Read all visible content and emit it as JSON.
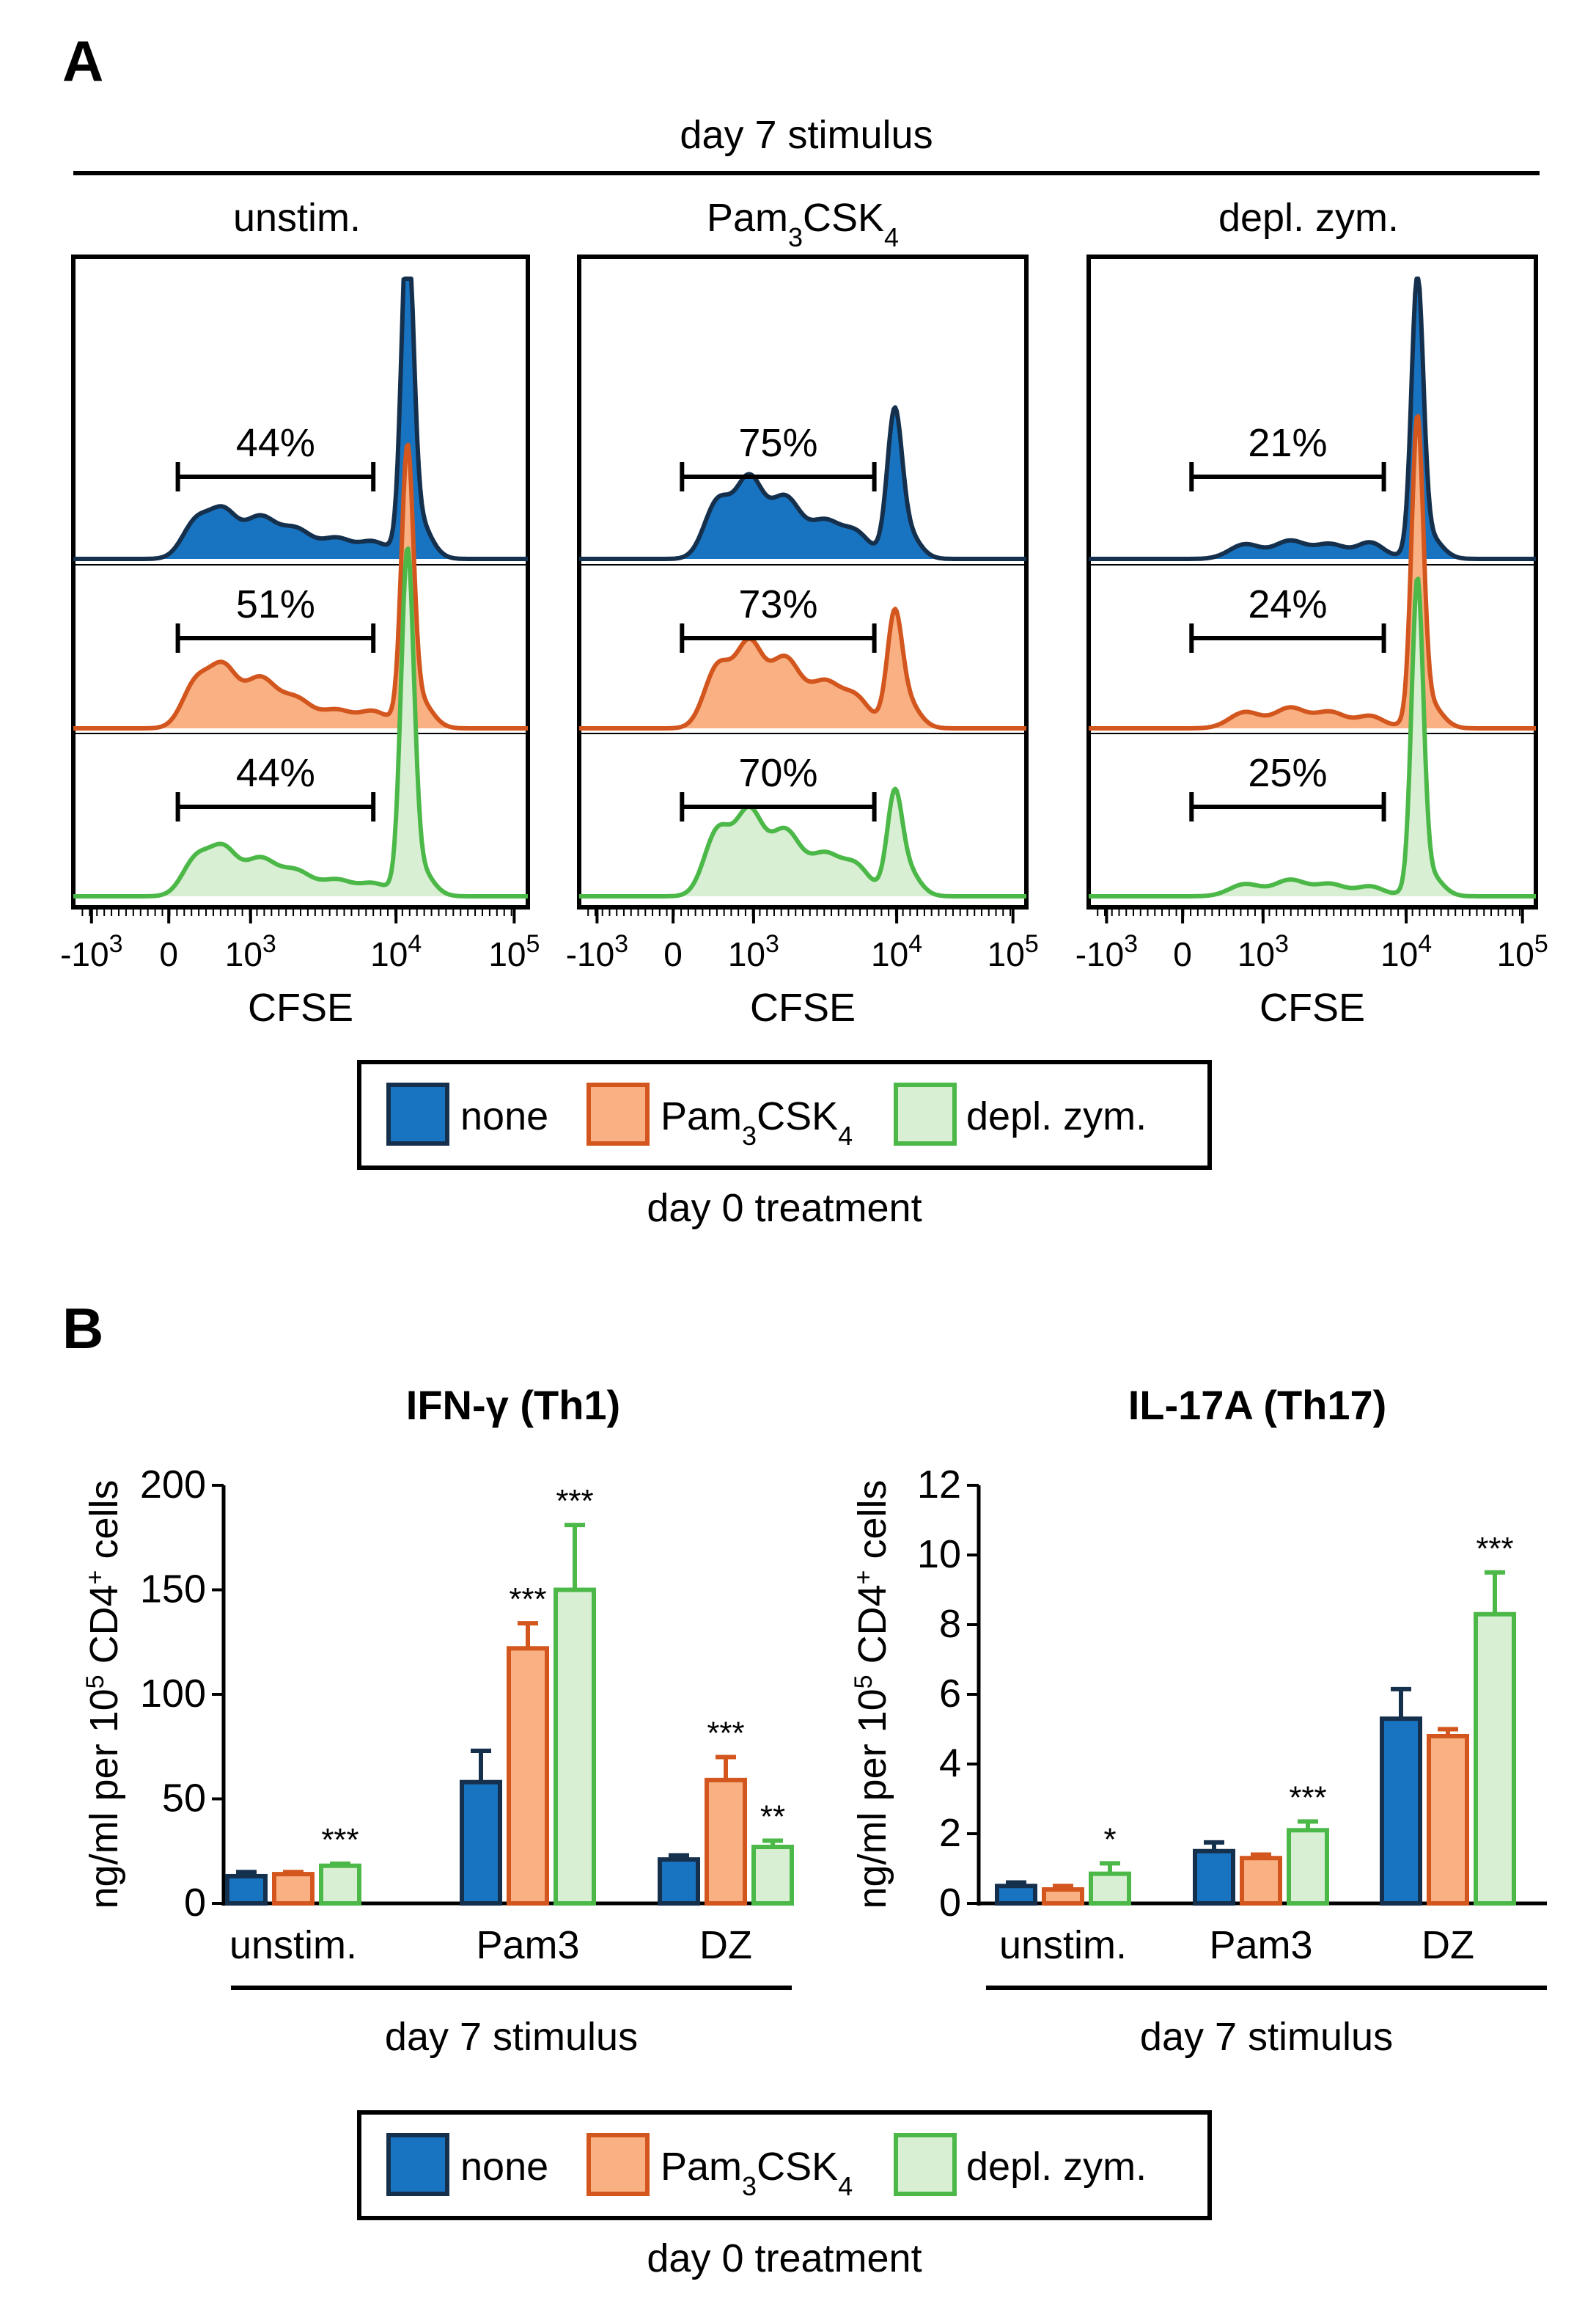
{
  "panel_a_letter": "A",
  "panel_b_letter": "B",
  "colors": {
    "none_fill": "#1874c1",
    "none_stroke": "#15304d",
    "pam_fill": "#f9b083",
    "pam_stroke": "#d2561d",
    "dz_fill": "#d9efd3",
    "dz_stroke": "#4bb848"
  },
  "panel_a": {
    "top_label": "day 7 stimulus",
    "axis_label": "CFSE",
    "x_ticks": {
      "neg": "-10",
      "neg_exp": "3",
      "zero": "0",
      "t3": "10",
      "t3_exp": "3",
      "t4": "10",
      "t4_exp": "4",
      "t5": "10",
      "t5_exp": "5"
    },
    "panels": [
      {
        "title": "unstim.",
        "percents": [
          "44%",
          "51%",
          "44%"
        ]
      },
      {
        "title_main": "Pam",
        "title_sub1": "3",
        "title_mid": "CSK",
        "title_sub2": "4",
        "percents": [
          "75%",
          "73%",
          "70%"
        ]
      },
      {
        "title": "depl. zym.",
        "percents": [
          "21%",
          "24%",
          "25%"
        ]
      }
    ]
  },
  "legend": {
    "none": "none",
    "pam_main": "Pam",
    "pam_sub1": "3",
    "pam_mid": "CSK",
    "pam_sub2": "4",
    "dz": "depl. zym.",
    "caption": "day 0 treatment"
  },
  "chart_data": [
    {
      "type": "bar",
      "title": "IFN-γ (Th1)",
      "ylabel_pre": "ng/ml per 10",
      "ylabel_sup1": "5",
      "ylabel_mid": " CD4",
      "ylabel_sup2": "+",
      "ylabel_post": " cells",
      "xlabel": "day 7 stimulus",
      "categories": [
        "unstim.",
        "Pam3",
        "DZ"
      ],
      "ylim": [
        0,
        200
      ],
      "yticks": [
        "0",
        "50",
        "100",
        "150",
        "200"
      ],
      "series": [
        {
          "name": "none",
          "values": [
            13,
            58,
            21
          ],
          "errors": [
            2,
            15,
            2
          ]
        },
        {
          "name": "Pam3CSK4",
          "values": [
            14,
            122,
            59
          ],
          "errors": [
            1,
            12,
            11
          ]
        },
        {
          "name": "depl. zym.",
          "values": [
            18,
            150,
            27
          ],
          "errors": [
            1,
            31,
            3
          ]
        }
      ],
      "significance": [
        [
          "",
          "",
          "***"
        ],
        [
          "",
          "***",
          "***"
        ],
        [
          "",
          "***",
          "**"
        ]
      ]
    },
    {
      "type": "bar",
      "title": "IL-17A (Th17)",
      "ylabel_pre": "ng/ml per 10",
      "ylabel_sup1": "5",
      "ylabel_mid": " CD4",
      "ylabel_sup2": "+",
      "ylabel_post": " cells",
      "xlabel": "day 7 stimulus",
      "categories": [
        "unstim.",
        "Pam3",
        "DZ"
      ],
      "ylim": [
        0,
        12
      ],
      "yticks": [
        "0",
        "2",
        "4",
        "6",
        "8",
        "10",
        "12"
      ],
      "series": [
        {
          "name": "none",
          "values": [
            0.5,
            1.5,
            5.3
          ],
          "errors": [
            0.1,
            0.25,
            0.85
          ]
        },
        {
          "name": "Pam3CSK4",
          "values": [
            0.4,
            1.3,
            4.8
          ],
          "errors": [
            0.1,
            0.1,
            0.2
          ]
        },
        {
          "name": "depl. zym.",
          "values": [
            0.85,
            2.1,
            8.3
          ],
          "errors": [
            0.3,
            0.25,
            1.2
          ]
        }
      ],
      "significance": [
        [
          "",
          "",
          "*"
        ],
        [
          "",
          "",
          "***"
        ],
        [
          "",
          "",
          "***"
        ]
      ]
    }
  ]
}
